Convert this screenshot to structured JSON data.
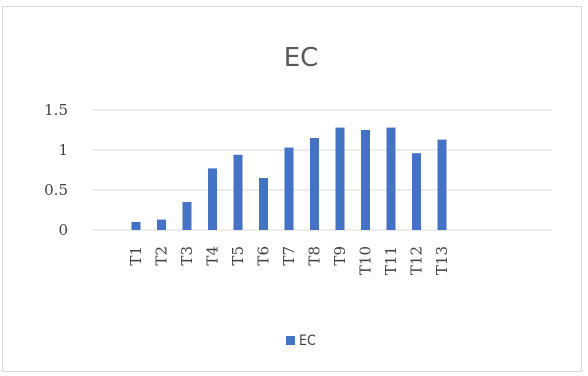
{
  "chart_data": {
    "type": "bar",
    "title": "EC",
    "xlabel": "",
    "ylabel": "",
    "categories": [
      "T1",
      "T2",
      "T3",
      "T4",
      "T5",
      "T6",
      "T7",
      "T8",
      "T9",
      "T10",
      "T11",
      "T12",
      "T13"
    ],
    "series": [
      {
        "name": "EC",
        "values": [
          0.1,
          0.13,
          0.35,
          0.77,
          0.94,
          0.65,
          1.03,
          1.15,
          1.28,
          1.25,
          1.28,
          0.96,
          1.13
        ]
      }
    ],
    "ylim": [
      0,
      1.5
    ],
    "yticks": [
      "0",
      "0.5",
      "1",
      "1.5"
    ],
    "grid": true,
    "legend_position": "bottom",
    "colors": {
      "bar": "#4472C4",
      "grid": "#d9d9d9",
      "text": "#404040",
      "title": "#595959",
      "frame": "#d9d9d9"
    }
  }
}
